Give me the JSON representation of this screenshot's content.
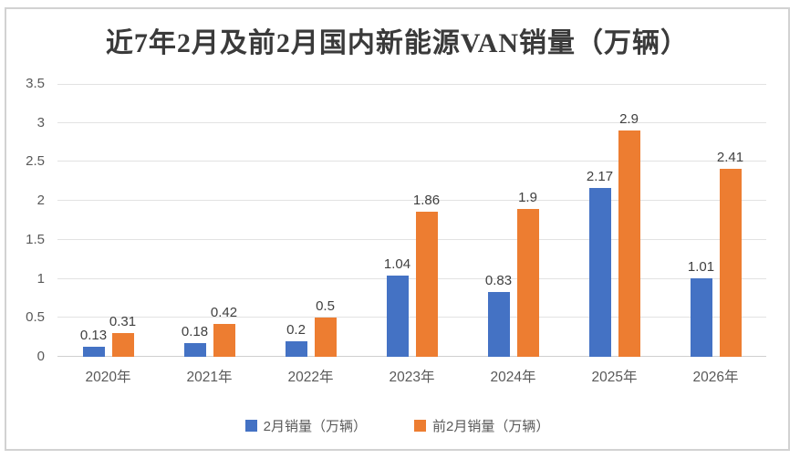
{
  "chart_data": {
    "type": "bar",
    "title": "近7年2月及前2月国内新能源VAN销量（万辆）",
    "categories": [
      "2020年",
      "2021年",
      "2022年",
      "2023年",
      "2024年",
      "2025年",
      "2026年"
    ],
    "series": [
      {
        "name": "2月销量（万辆）",
        "color": "#4472C4",
        "values": [
          0.13,
          0.18,
          0.2,
          1.04,
          0.83,
          2.17,
          1.01
        ]
      },
      {
        "name": "前2月销量（万辆）",
        "color": "#ED7D31",
        "values": [
          0.31,
          0.42,
          0.5,
          1.86,
          1.9,
          2.9,
          2.41
        ]
      }
    ],
    "ylim": [
      0,
      3.5
    ],
    "yticks": [
      "0",
      "0.5",
      "1",
      "1.5",
      "2",
      "2.5",
      "3",
      "3.5"
    ],
    "grid": true,
    "legend_position": "bottom",
    "data_labels_visible": true
  },
  "colors": {
    "series_blue": "#4472C4",
    "series_orange": "#ED7D31",
    "gridline": "#E2E2E2",
    "axis_text": "#595959",
    "data_label_text": "#404040",
    "title_text": "#3A3A3A",
    "frame_border": "#D2D2D2",
    "background": "#FFFFFF"
  }
}
